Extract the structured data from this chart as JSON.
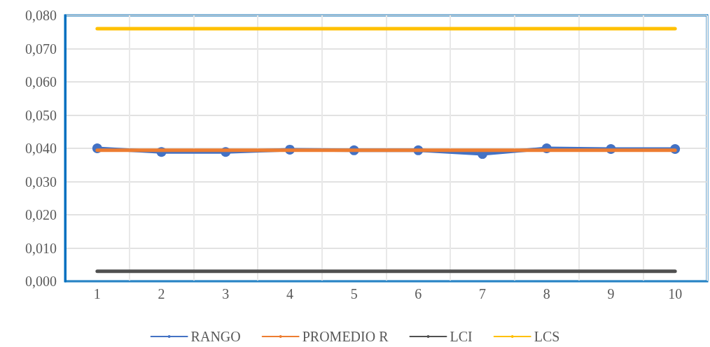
{
  "chart_data": {
    "type": "line",
    "categories": [
      "1",
      "2",
      "3",
      "4",
      "5",
      "6",
      "7",
      "8",
      "9",
      "10"
    ],
    "series": [
      {
        "name": "RANGO",
        "color": "#4472c4",
        "values": [
          0.04,
          0.0389,
          0.0389,
          0.0396,
          0.0394,
          0.0394,
          0.0383,
          0.04,
          0.0398,
          0.0398
        ],
        "marker": "circle"
      },
      {
        "name": "PROMEDIO R",
        "color": "#ed7d31",
        "values": [
          0.0394,
          0.0394,
          0.0394,
          0.0394,
          0.0394,
          0.0394,
          0.0394,
          0.0394,
          0.0394,
          0.0394
        ],
        "marker": "none"
      },
      {
        "name": "LCI",
        "color": "#505050",
        "values": [
          0.003,
          0.003,
          0.003,
          0.003,
          0.003,
          0.003,
          0.003,
          0.003,
          0.003,
          0.003
        ],
        "marker": "none"
      },
      {
        "name": "LCS",
        "color": "#ffc000",
        "values": [
          0.076,
          0.076,
          0.076,
          0.076,
          0.076,
          0.076,
          0.076,
          0.076,
          0.076,
          0.076
        ],
        "marker": "none"
      }
    ],
    "ylim": [
      0,
      0.08
    ],
    "yticks": [
      {
        "value": 0,
        "label": "0,000"
      },
      {
        "value": 0.01,
        "label": "0,010"
      },
      {
        "value": 0.02,
        "label": "0,020"
      },
      {
        "value": 0.03,
        "label": "0,030"
      },
      {
        "value": 0.04,
        "label": "0,040"
      },
      {
        "value": 0.05,
        "label": "0,050"
      },
      {
        "value": 0.06,
        "label": "0,060"
      },
      {
        "value": 0.07,
        "label": "0,070"
      },
      {
        "value": 0.08,
        "label": "0,080"
      }
    ],
    "grid": true,
    "legend": "bottom",
    "line_style": "solid"
  }
}
